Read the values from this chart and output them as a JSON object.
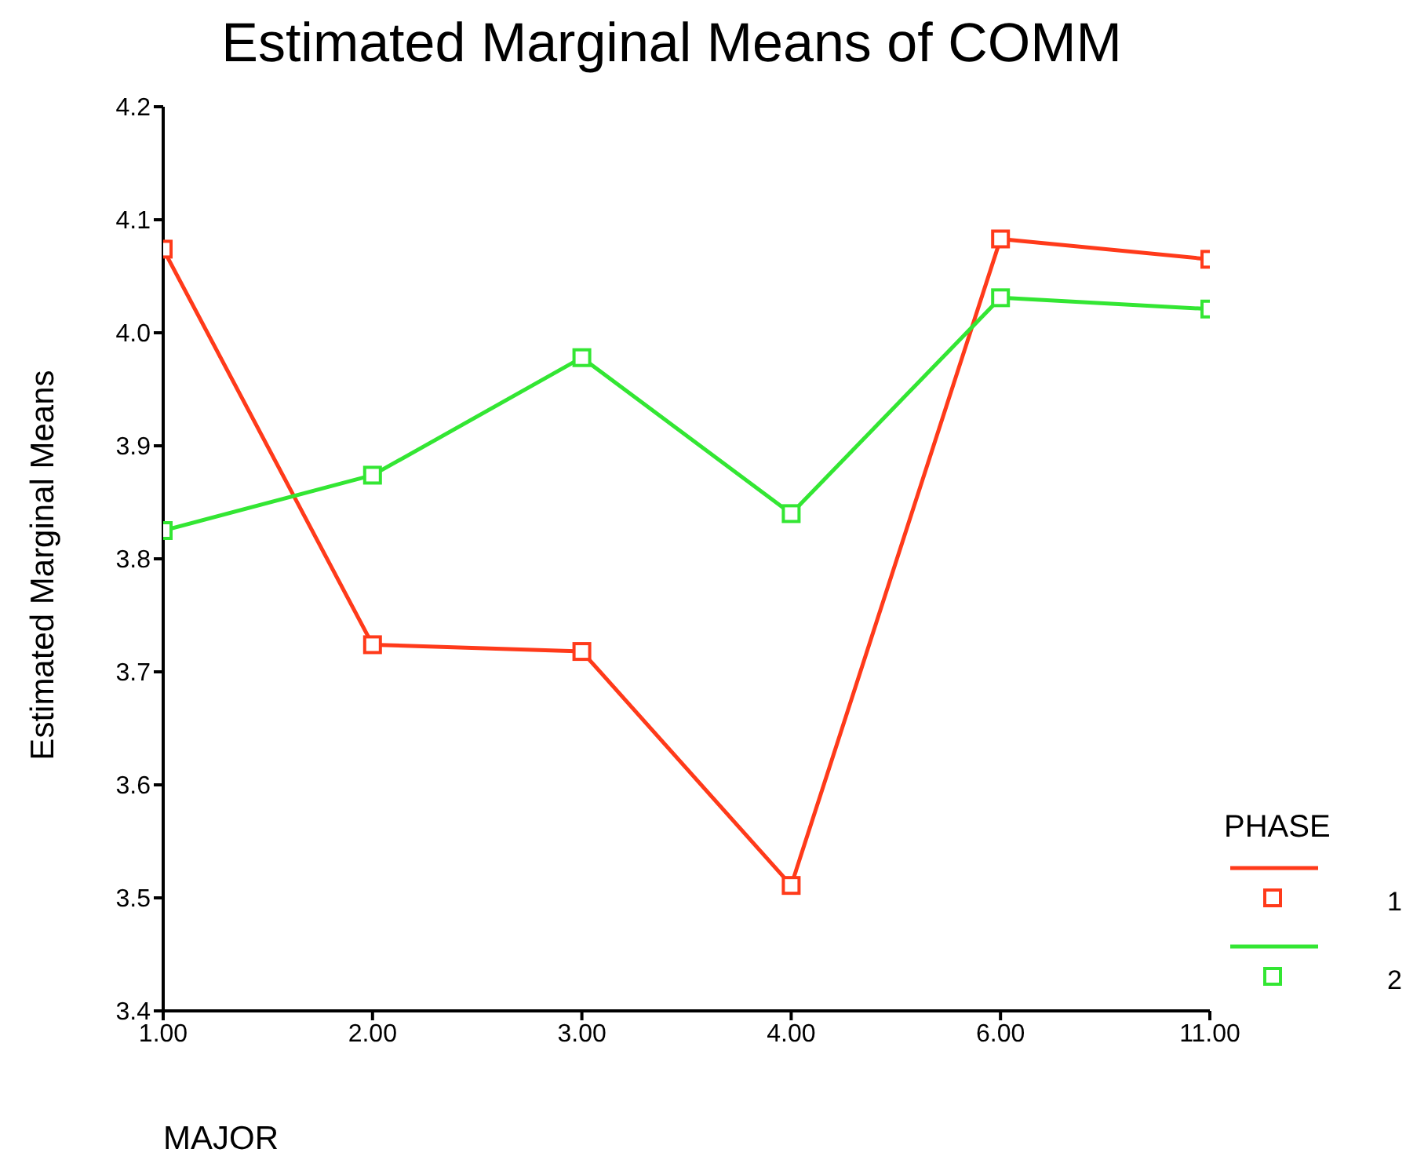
{
  "chart_data": {
    "type": "line",
    "title": "Estimated Marginal Means of COMM",
    "xlabel": "MAJOR",
    "ylabel": "Estimated Marginal Means",
    "legend_title": "PHASE",
    "categories": [
      "1.00",
      "2.00",
      "3.00",
      "4.00",
      "6.00",
      "11.00"
    ],
    "series": [
      {
        "name": "1",
        "color": "#ff3a1a",
        "values": [
          4.074,
          3.724,
          3.718,
          3.511,
          4.083,
          4.065
        ]
      },
      {
        "name": "2",
        "color": "#33e633",
        "values": [
          3.825,
          3.874,
          3.978,
          3.84,
          4.031,
          4.021
        ]
      }
    ],
    "ylim": [
      3.4,
      4.2
    ],
    "yticks": [
      3.4,
      3.5,
      3.6,
      3.7,
      3.8,
      3.9,
      {
        "value": 4,
        "label": "4.0"
      },
      4.1,
      4.2
    ],
    "grid": false,
    "legend": "right",
    "marker": "square",
    "line_style": "solid"
  }
}
